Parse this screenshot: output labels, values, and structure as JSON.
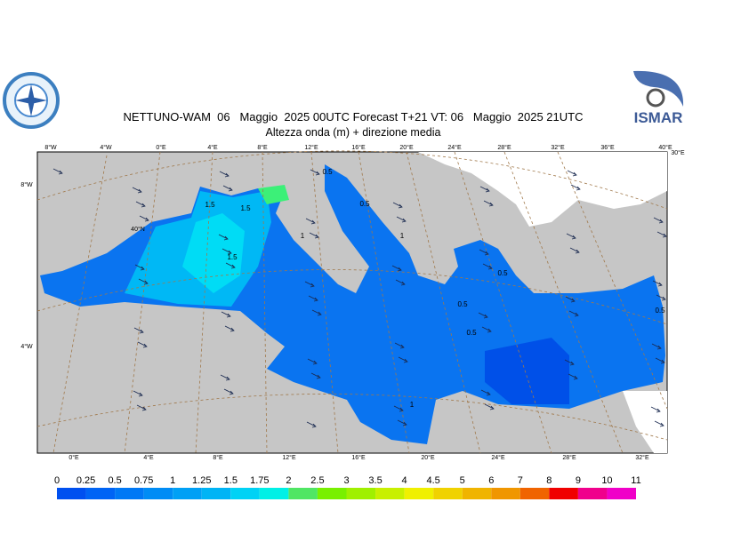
{
  "header": {
    "title": "NETTUNO-WAM  06   Maggio  2025 00UTC Forecast T+21 VT: 06   Maggio  2025 21UTC",
    "subtitle": "Altezza onda (m) + direzione media",
    "logo_right": "ISMAR"
  },
  "map": {
    "top_labels": [
      "8°W",
      "4°W",
      "0°E",
      "4°E",
      "8°E",
      "12°E",
      "16°E",
      "20°E",
      "24°E",
      "28°E",
      "32°E",
      "36°E",
      "40°E"
    ],
    "bottom_labels": [
      "0°E",
      "4°E",
      "8°E",
      "12°E",
      "16°E",
      "20°E",
      "24°E",
      "28°E",
      "32°E"
    ],
    "left_labels": [
      "8°W",
      "4°W"
    ],
    "inner_labels": [
      "40°N",
      "30°E"
    ],
    "contour_labels": [
      "1.5",
      "1.5",
      "1.5",
      "1",
      "0.5",
      "0.5",
      "1",
      "0.5",
      "0.5",
      "0.5",
      "1",
      "0.5"
    ]
  },
  "colorbar": {
    "levels": [
      0,
      0.25,
      0.5,
      0.75,
      1,
      1.25,
      1.5,
      1.75,
      2,
      2.5,
      3,
      3.5,
      4,
      4.5,
      5,
      6,
      7,
      8,
      9,
      10,
      11
    ],
    "colors": [
      "#0050f0",
      "#0064f5",
      "#0078f5",
      "#008cf5",
      "#00a0f5",
      "#00b4f5",
      "#00d2f5",
      "#00f0e6",
      "#50e664",
      "#78f000",
      "#a0f000",
      "#c8f000",
      "#f0f000",
      "#f0d200",
      "#f0b400",
      "#f09600",
      "#f06400",
      "#f00000",
      "#f0008c",
      "#f000c8"
    ]
  }
}
